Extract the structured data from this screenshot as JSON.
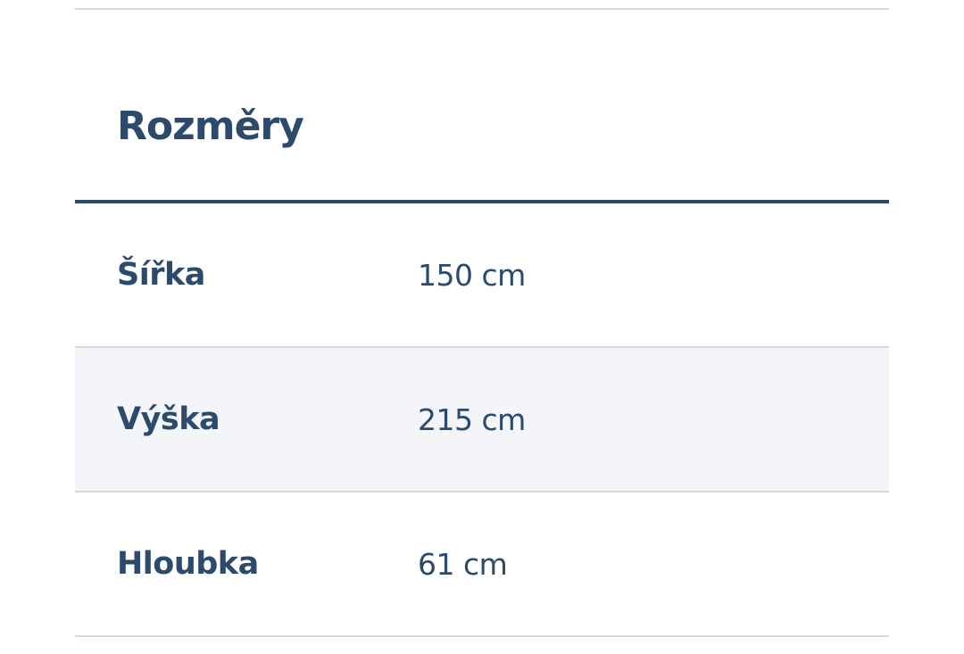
{
  "section": {
    "title": "Rozměry"
  },
  "rows": [
    {
      "label": "Šířka",
      "value": "150 cm"
    },
    {
      "label": "Výška",
      "value": "215 cm"
    },
    {
      "label": "Hloubka",
      "value": "61 cm"
    }
  ],
  "colors": {
    "text": "#2c4a6b",
    "header_rule": "#2d4a68",
    "alt_row": "#f3f5f8",
    "divider": "#d6d8dc"
  }
}
